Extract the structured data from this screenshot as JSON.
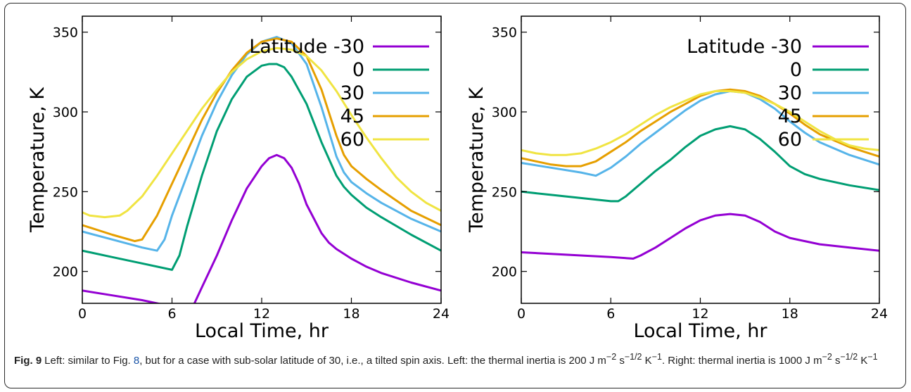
{
  "caption": {
    "label": "Fig. 9",
    "text_before": "Left: similar to Fig. ",
    "fig_ref": "8",
    "text_after": ", but for a case with sub-solar latitude of 30, i.e., a tilted spin axis. Left: the thermal inertia is 200 J m",
    "sup1": "−2",
    "t2": " s",
    "sup2": "−1/2",
    "t3": " K",
    "sup3": "−1",
    "t4": ". Right: thermal inertia is 1000 J m",
    "sup4": "−2",
    "t5": " s",
    "sup5": "−1/2",
    "t6": " K",
    "sup6": "−1",
    "link_color": "#1a55a8"
  },
  "chart_data": [
    {
      "type": "line",
      "xlabel": "Local Time, hr",
      "ylabel": "Temperature, K",
      "xlim": [
        0,
        24
      ],
      "ylim": [
        180,
        360
      ],
      "xticks": [
        "0",
        "6",
        "12",
        "18",
        "24"
      ],
      "yticks": [
        "200",
        "250",
        "300",
        "350"
      ],
      "legend_title": "Latitude",
      "legend_position": "top-right",
      "grid": false,
      "series": [
        {
          "name": "-30",
          "color": "#9400d3",
          "x": [
            0,
            2,
            4,
            6,
            7,
            7.5,
            8,
            9,
            10,
            11,
            12,
            12.5,
            13,
            13.5,
            14,
            14.5,
            15,
            16,
            16.5,
            17,
            18,
            19,
            20,
            22,
            24
          ],
          "y": [
            188,
            185,
            182,
            178,
            176,
            180,
            190,
            210,
            232,
            252,
            266,
            271,
            273,
            271,
            265,
            255,
            242,
            224,
            218,
            214,
            208,
            203,
            199,
            193,
            188
          ]
        },
        {
          "name": "0",
          "color": "#009e73",
          "x": [
            0,
            2,
            4,
            6,
            6.5,
            7,
            8,
            9,
            10,
            11,
            12,
            12.5,
            13,
            13.5,
            14,
            15,
            16,
            17,
            17.5,
            18,
            19,
            20,
            22,
            24
          ],
          "y": [
            213,
            209,
            205,
            201,
            210,
            228,
            260,
            288,
            308,
            322,
            329,
            330,
            330,
            328,
            322,
            305,
            281,
            260,
            253,
            248,
            240,
            234,
            223,
            213
          ]
        },
        {
          "name": "30",
          "color": "#56b4e9",
          "x": [
            0,
            2,
            4,
            5,
            5.5,
            6,
            7,
            8,
            9,
            10,
            11,
            12,
            13,
            14,
            15,
            16,
            17,
            17.5,
            18,
            19,
            20,
            22,
            24
          ],
          "y": [
            225,
            220,
            215,
            213,
            220,
            235,
            260,
            285,
            306,
            323,
            336,
            344,
            347,
            343,
            330,
            303,
            272,
            262,
            256,
            249,
            243,
            233,
            225
          ]
        },
        {
          "name": "45",
          "color": "#e69f00",
          "x": [
            0,
            2,
            3.5,
            4,
            5,
            6,
            7,
            8,
            9,
            10,
            11,
            12,
            13,
            14,
            15,
            16,
            17,
            17.5,
            18,
            19,
            20,
            22,
            24
          ],
          "y": [
            229,
            223,
            219,
            220,
            235,
            255,
            275,
            295,
            312,
            326,
            337,
            344,
            346,
            344,
            335,
            314,
            285,
            273,
            266,
            258,
            251,
            238,
            229
          ]
        },
        {
          "name": "60",
          "color": "#f0e442",
          "x": [
            0,
            0.5,
            1.5,
            2.5,
            3,
            4,
            5,
            6,
            7,
            8,
            9,
            10,
            11,
            12,
            13,
            14,
            15,
            16,
            17,
            18,
            19,
            20,
            21,
            22,
            23,
            24
          ],
          "y": [
            237,
            235,
            234,
            235,
            238,
            247,
            260,
            274,
            288,
            302,
            314,
            325,
            333,
            338,
            340,
            339,
            335,
            326,
            313,
            298,
            284,
            271,
            259,
            250,
            243,
            238
          ]
        }
      ]
    },
    {
      "type": "line",
      "xlabel": "Local Time, hr",
      "ylabel": "Temperature, K",
      "xlim": [
        0,
        24
      ],
      "ylim": [
        180,
        360
      ],
      "xticks": [
        "0",
        "6",
        "12",
        "18",
        "24"
      ],
      "yticks": [
        "200",
        "250",
        "300",
        "350"
      ],
      "legend_title": "Latitude",
      "legend_position": "top-right",
      "grid": false,
      "series": [
        {
          "name": "-30",
          "color": "#9400d3",
          "x": [
            0,
            2,
            4,
            6,
            7.5,
            8,
            9,
            10,
            11,
            12,
            13,
            14,
            15,
            16,
            17,
            18,
            19,
            20,
            22,
            24
          ],
          "y": [
            212,
            211,
            210,
            209,
            208,
            210,
            215,
            221,
            227,
            232,
            235,
            236,
            235,
            231,
            225,
            221,
            219,
            217,
            215,
            213
          ]
        },
        {
          "name": "0",
          "color": "#009e73",
          "x": [
            0,
            2,
            4,
            6,
            6.5,
            7,
            8,
            9,
            10,
            11,
            12,
            13,
            14,
            15,
            16,
            17,
            18,
            19,
            20,
            22,
            24
          ],
          "y": [
            250,
            248,
            246,
            244,
            244,
            247,
            255,
            263,
            270,
            278,
            285,
            289,
            291,
            289,
            283,
            275,
            266,
            261,
            258,
            254,
            251
          ]
        },
        {
          "name": "30",
          "color": "#56b4e9",
          "x": [
            0,
            2,
            4,
            5,
            6,
            7,
            8,
            9,
            10,
            11,
            12,
            13,
            14,
            15,
            16,
            17,
            18,
            19,
            20,
            22,
            24
          ],
          "y": [
            268,
            265,
            262,
            260,
            265,
            272,
            280,
            287,
            294,
            301,
            307,
            311,
            313,
            312,
            308,
            302,
            294,
            287,
            281,
            273,
            267
          ]
        },
        {
          "name": "45",
          "color": "#e69f00",
          "x": [
            0,
            1,
            2,
            3,
            4,
            5,
            6,
            7,
            8,
            9,
            10,
            11,
            12,
            13,
            14,
            15,
            16,
            17,
            18,
            19,
            20,
            22,
            24
          ],
          "y": [
            271,
            269,
            267,
            266,
            266,
            269,
            275,
            281,
            288,
            294,
            300,
            305,
            310,
            313,
            314,
            313,
            310,
            305,
            299,
            292,
            286,
            278,
            272
          ]
        },
        {
          "name": "60",
          "color": "#f0e442",
          "x": [
            0,
            1,
            2,
            3,
            4,
            5,
            6,
            7,
            8,
            9,
            10,
            11,
            12,
            13,
            14,
            15,
            16,
            17,
            18,
            19,
            20,
            21,
            22,
            23,
            24
          ],
          "y": [
            276,
            274,
            273,
            273,
            274,
            277,
            281,
            286,
            292,
            298,
            303,
            307,
            311,
            313,
            313,
            312,
            309,
            305,
            300,
            294,
            288,
            283,
            279,
            277,
            276
          ]
        }
      ]
    }
  ]
}
